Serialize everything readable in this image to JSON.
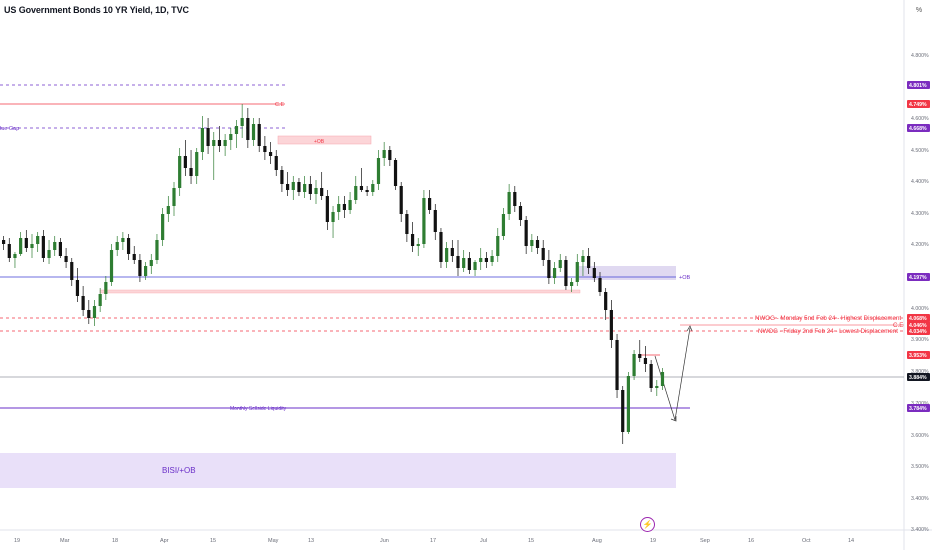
{
  "header": {
    "title": "US Government Bonds 10 YR Yield, 1D, TVC",
    "percent_button": "%"
  },
  "toolbar": {
    "lightning_icon": "lightning-icon"
  },
  "colors": {
    "bull": "#2e7d32",
    "bear": "#121212",
    "red": "#f23645",
    "purple": "#6a2fc8",
    "blue_line": "#3f3fd4",
    "gray": "#787b86"
  },
  "price_axis": {
    "ticks": [
      "4.900%",
      "4.800%",
      "4.700%",
      "4.600%",
      "4.500%",
      "4.400%",
      "4.300%",
      "4.200%",
      "4.100%",
      "4.000%",
      "3.900%",
      "3.800%",
      "3.700%",
      "3.600%",
      "3.500%",
      "3.400%"
    ],
    "top_partial": "4.900%",
    "badges": [
      {
        "label": "4.801%",
        "kind": "purple"
      },
      {
        "label": "4.749%",
        "kind": "red"
      },
      {
        "label": "4.668%",
        "kind": "purple"
      },
      {
        "label": "4.197%",
        "kind": "purple"
      },
      {
        "label": "4.068%",
        "kind": "red"
      },
      {
        "label": "4.046%",
        "kind": "red"
      },
      {
        "label": "4.034%",
        "kind": "red"
      },
      {
        "label": "3.953%",
        "kind": "red"
      },
      {
        "label": "3.884%",
        "kind": "dark"
      },
      {
        "label": "3.784%",
        "kind": "purple"
      }
    ]
  },
  "time_axis": {
    "labels": [
      "19",
      "Mar",
      "18",
      "Apr",
      "15",
      "May",
      "13",
      "Jun",
      "17",
      "Jul",
      "15",
      "Aug",
      "19",
      "Sep",
      "16",
      "Oct",
      "14"
    ]
  },
  "annotations": {
    "ce_top": "C.E",
    "fvg_partial": "lue Gap",
    "ob_top": "+OB",
    "ob_right": "+OB",
    "nwog_monday": "NWOG - Monday 5nd Feb 24 - Highest Displacement",
    "ce_right": "C.E",
    "nwog_friday": "NWOG - Friday 2nd Feb 24 - Lowest Displacement",
    "monthly_ssl": "Monthly Sellside Liquidity",
    "bisi_ob": "BISI/+OB"
  }
}
